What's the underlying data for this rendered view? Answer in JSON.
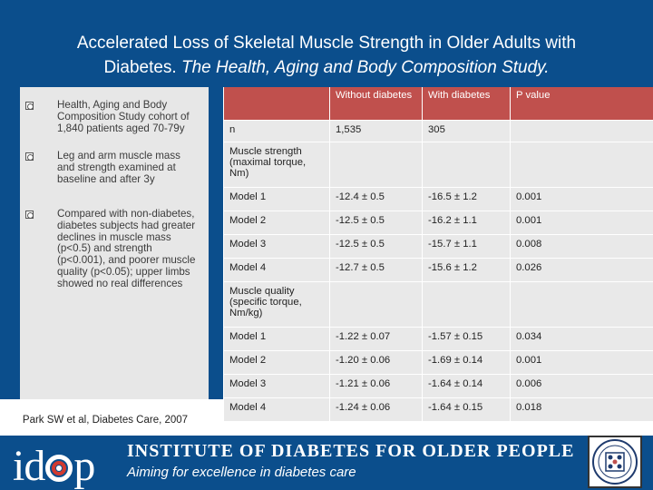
{
  "slide": {
    "title_line1": "Accelerated Loss of Skeletal Muscle Strength in Older Adults with",
    "title_line2_plain": "Diabetes. ",
    "title_line2_italic": "The Health, Aging and Body Composition Study."
  },
  "bullets": [
    "Health, Aging and Body Composition Study cohort of 1,840 patients aged 70-79y",
    "Leg and arm muscle mass and strength examined at baseline and after 3y",
    "Compared with non-diabetes, diabetes subjects had greater declines in muscle mass (p<0.5) and strength (p<0.001), and poorer muscle quality (p<0.05); upper limbs showed no real differences"
  ],
  "citation": "Park SW et al, Diabetes Care, 2007",
  "table": {
    "headers": [
      "",
      "Without diabetes",
      "With diabetes",
      "P value"
    ],
    "rows": [
      [
        "n",
        "1,535",
        "305",
        ""
      ],
      [
        "Muscle strength (maximal torque, Nm)",
        "",
        "",
        ""
      ],
      [
        "Model 1",
        "-12.4 ± 0.5",
        "-16.5 ± 1.2",
        "0.001"
      ],
      [
        "Model 2",
        "-12.5 ± 0.5",
        "-16.2 ± 1.1",
        "0.001"
      ],
      [
        "Model 3",
        "-12.5 ± 0.5",
        "-15.7 ± 1.1",
        "0.008"
      ],
      [
        "Model 4",
        "-12.7 ± 0.5",
        "-15.6 ± 1.2",
        "0.026"
      ],
      [
        "Muscle quality (specific torque, Nm/kg)",
        "",
        "",
        ""
      ],
      [
        "Model 1",
        "-1.22 ± 0.07",
        "-1.57 ± 0.15",
        "0.034"
      ],
      [
        "Model 2",
        "-1.20 ± 0.06",
        "-1.69 ± 0.14",
        "0.001"
      ],
      [
        "Model 3",
        "-1.21 ± 0.06",
        "-1.64 ± 0.14",
        "0.006"
      ],
      [
        "Model 4",
        "-1.24 ± 0.06",
        "-1.64 ± 0.15",
        "0.018"
      ]
    ]
  },
  "footer": {
    "logo_left": "id",
    "logo_right": "p",
    "org_name": "INSTITUTE OF DIABETES FOR OLDER PEOPLE",
    "tagline": "Aiming for excellence in diabetes care"
  },
  "colors": {
    "background": "#0b4e8c",
    "table_header": "#c0504d",
    "table_cell": "#e9e9e9",
    "panel": "#e7e7e7"
  }
}
